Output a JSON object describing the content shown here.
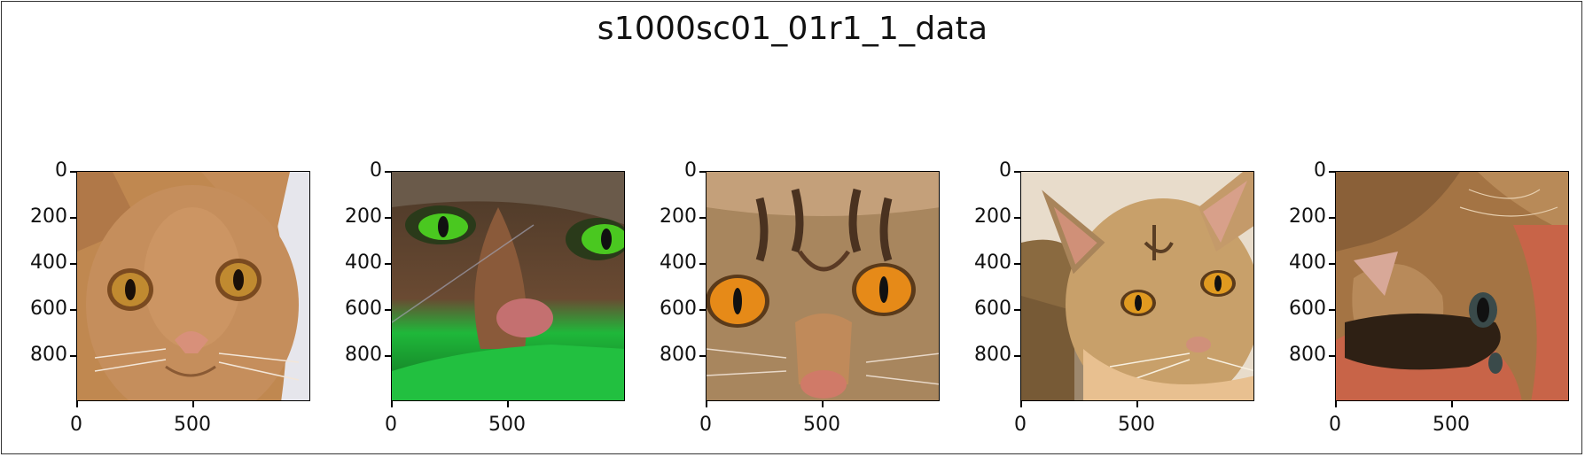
{
  "figure": {
    "title": "s1000sc01_01r1_1_data"
  },
  "axes": {
    "y_ticks": [
      "0",
      "200",
      "400",
      "600",
      "800"
    ],
    "x_ticks": [
      "0",
      "500"
    ]
  },
  "images": [
    {
      "subject": "orange tabby cat face close-up with amber eyes",
      "palette": [
        "#b87e4e",
        "#d6a273",
        "#e7d3c0",
        "#c97a3a"
      ]
    },
    {
      "subject": "tabby cat face with green eyes on green background",
      "palette": [
        "#4a3a2a",
        "#8b5a3a",
        "#22c23a",
        "#c87a5a"
      ]
    },
    {
      "subject": "tabby cat extreme close-up with large orange eyes",
      "palette": [
        "#9a7a5a",
        "#d0a070",
        "#e89020",
        "#6a4a30"
      ]
    },
    {
      "subject": "abyssinian cat lying down with cream background",
      "palette": [
        "#c4a06a",
        "#efe6d8",
        "#8a6a40",
        "#e0a030"
      ]
    },
    {
      "subject": "abyssinian cat curled up on red cushion",
      "palette": [
        "#a87a48",
        "#d06848",
        "#3a2a1c",
        "#c89a6a"
      ]
    }
  ]
}
